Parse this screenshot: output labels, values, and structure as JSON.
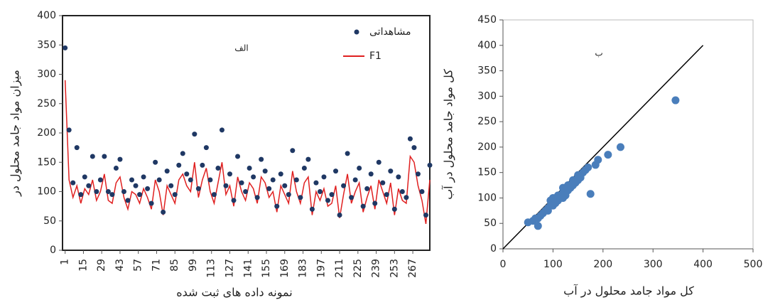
{
  "chart_data": [
    {
      "type": "line",
      "annotation": "الف",
      "xlabel": "نمونه داده های ثبت شده",
      "ylabel": "میزان مواد جامد محلول در",
      "x": [
        1,
        4,
        7,
        10,
        13,
        16,
        19,
        22,
        25,
        28,
        31,
        34,
        37,
        40,
        43,
        46,
        49,
        52,
        55,
        58,
        61,
        64,
        67,
        70,
        73,
        76,
        79,
        82,
        85,
        88,
        91,
        94,
        97,
        100,
        103,
        106,
        109,
        112,
        115,
        118,
        121,
        124,
        127,
        130,
        133,
        136,
        139,
        142,
        145,
        148,
        151,
        154,
        157,
        160,
        163,
        166,
        169,
        172,
        175,
        178,
        181,
        184,
        187,
        190,
        193,
        196,
        199,
        202,
        205,
        208,
        211,
        214,
        217,
        220,
        223,
        226,
        229,
        232,
        235,
        238,
        241,
        244,
        247,
        250,
        253,
        256,
        259,
        262,
        265,
        268,
        271,
        274,
        277,
        280
      ],
      "series": [
        {
          "name": "مشاهداتی",
          "color": "#1f3864",
          "mode": "markers",
          "values": [
            345,
            205,
            115,
            175,
            95,
            125,
            110,
            160,
            100,
            120,
            160,
            100,
            95,
            140,
            155,
            100,
            85,
            120,
            110,
            95,
            125,
            105,
            80,
            150,
            120,
            65,
            135,
            110,
            95,
            145,
            165,
            130,
            120,
            198,
            105,
            145,
            175,
            120,
            95,
            140,
            205,
            110,
            130,
            85,
            160,
            115,
            100,
            140,
            125,
            90,
            155,
            135,
            105,
            120,
            75,
            130,
            110,
            95,
            170,
            120,
            90,
            140,
            155,
            70,
            115,
            100,
            125,
            85,
            95,
            135,
            60,
            110,
            165,
            90,
            120,
            140,
            75,
            105,
            130,
            80,
            150,
            115,
            95,
            135,
            70,
            125,
            100,
            90,
            190,
            175,
            130,
            100,
            60,
            145
          ]
        },
        {
          "name": "F1",
          "color": "#e02020",
          "mode": "line",
          "values": [
            290,
            120,
            90,
            110,
            80,
            105,
            95,
            120,
            85,
            100,
            130,
            85,
            80,
            115,
            125,
            90,
            70,
            100,
            95,
            80,
            105,
            90,
            70,
            120,
            100,
            60,
            110,
            95,
            80,
            120,
            130,
            110,
            100,
            150,
            90,
            120,
            140,
            100,
            80,
            115,
            150,
            95,
            110,
            75,
            125,
            100,
            85,
            115,
            105,
            80,
            125,
            115,
            90,
            100,
            65,
            110,
            95,
            80,
            135,
            100,
            80,
            115,
            125,
            60,
            100,
            85,
            105,
            75,
            80,
            110,
            55,
            95,
            130,
            80,
            100,
            115,
            65,
            90,
            110,
            70,
            120,
            100,
            80,
            115,
            60,
            105,
            85,
            80,
            160,
            150,
            110,
            85,
            45,
            120
          ]
        }
      ],
      "xlim": [
        -1,
        280
      ],
      "xticks": [
        1,
        15,
        29,
        43,
        57,
        71,
        85,
        99,
        113,
        127,
        141,
        155,
        169,
        183,
        197,
        211,
        225,
        239,
        253,
        267
      ],
      "ylim": [
        0,
        400
      ],
      "yticks": [
        0,
        50,
        100,
        150,
        200,
        250,
        300,
        350,
        400
      ],
      "legend": "top-right"
    },
    {
      "type": "scatter",
      "annotation": "ب",
      "xlabel": "کل مواد جامد محلول در آب",
      "ylabel": "کل مواد جامد محلول در آب",
      "series": [
        {
          "color": "#4a7ebb",
          "x": [
            50,
            60,
            65,
            70,
            75,
            80,
            85,
            90,
            95,
            100,
            100,
            105,
            110,
            110,
            115,
            120,
            120,
            125,
            130,
            130,
            135,
            140,
            140,
            145,
            150,
            150,
            155,
            160,
            165,
            170,
            175,
            185,
            190,
            210,
            235,
            345,
            70,
            90,
            120,
            95,
            130
          ],
          "y": [
            52,
            55,
            60,
            45,
            65,
            70,
            75,
            80,
            95,
            85,
            100,
            90,
            95,
            105,
            100,
            110,
            120,
            105,
            115,
            125,
            120,
            125,
            135,
            130,
            135,
            145,
            140,
            150,
            155,
            160,
            108,
            165,
            175,
            185,
            200,
            292,
            60,
            75,
            100,
            85,
            120
          ]
        }
      ],
      "reference_line": {
        "color": "#000000",
        "x": [
          0,
          400
        ],
        "y": [
          0,
          400
        ]
      },
      "xlim": [
        0,
        500
      ],
      "xticks": [
        0,
        100,
        200,
        300,
        400,
        500
      ],
      "ylim": [
        0,
        450
      ],
      "yticks": [
        0,
        50,
        100,
        150,
        200,
        250,
        300,
        350,
        400,
        450
      ]
    }
  ]
}
